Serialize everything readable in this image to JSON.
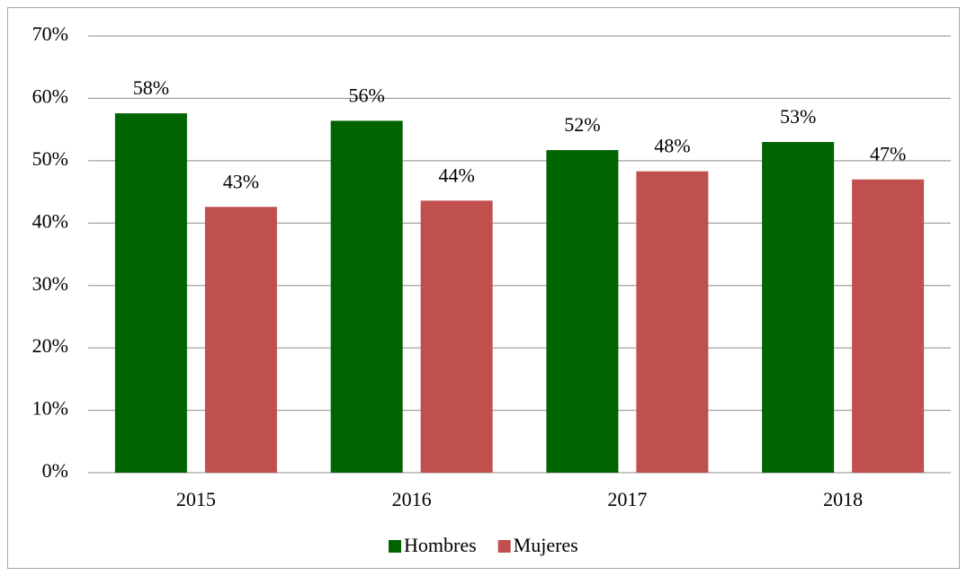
{
  "chart_data": {
    "type": "bar",
    "categories": [
      "2015",
      "2016",
      "2017",
      "2018"
    ],
    "series": [
      {
        "name": "Hombres",
        "color": "#006400",
        "values": [
          57.6,
          56.4,
          51.7,
          53.0
        ],
        "value_labels": [
          "58%",
          "56%",
          "52%",
          "53%"
        ]
      },
      {
        "name": "Mujeres",
        "color": "#c0504d",
        "values": [
          42.6,
          43.6,
          48.3,
          47.0
        ],
        "value_labels": [
          "43%",
          "44%",
          "48%",
          "47%"
        ]
      }
    ],
    "ylim": [
      0,
      70
    ],
    "yticks": [
      {
        "value": 0,
        "label": "0%"
      },
      {
        "value": 10,
        "label": "10%"
      },
      {
        "value": 20,
        "label": "20%"
      },
      {
        "value": 30,
        "label": "30%"
      },
      {
        "value": 40,
        "label": "40%"
      },
      {
        "value": 50,
        "label": "50%"
      },
      {
        "value": 60,
        "label": "60%"
      },
      {
        "value": 70,
        "label": "70%"
      }
    ],
    "grid": true,
    "legend": "bottom"
  }
}
